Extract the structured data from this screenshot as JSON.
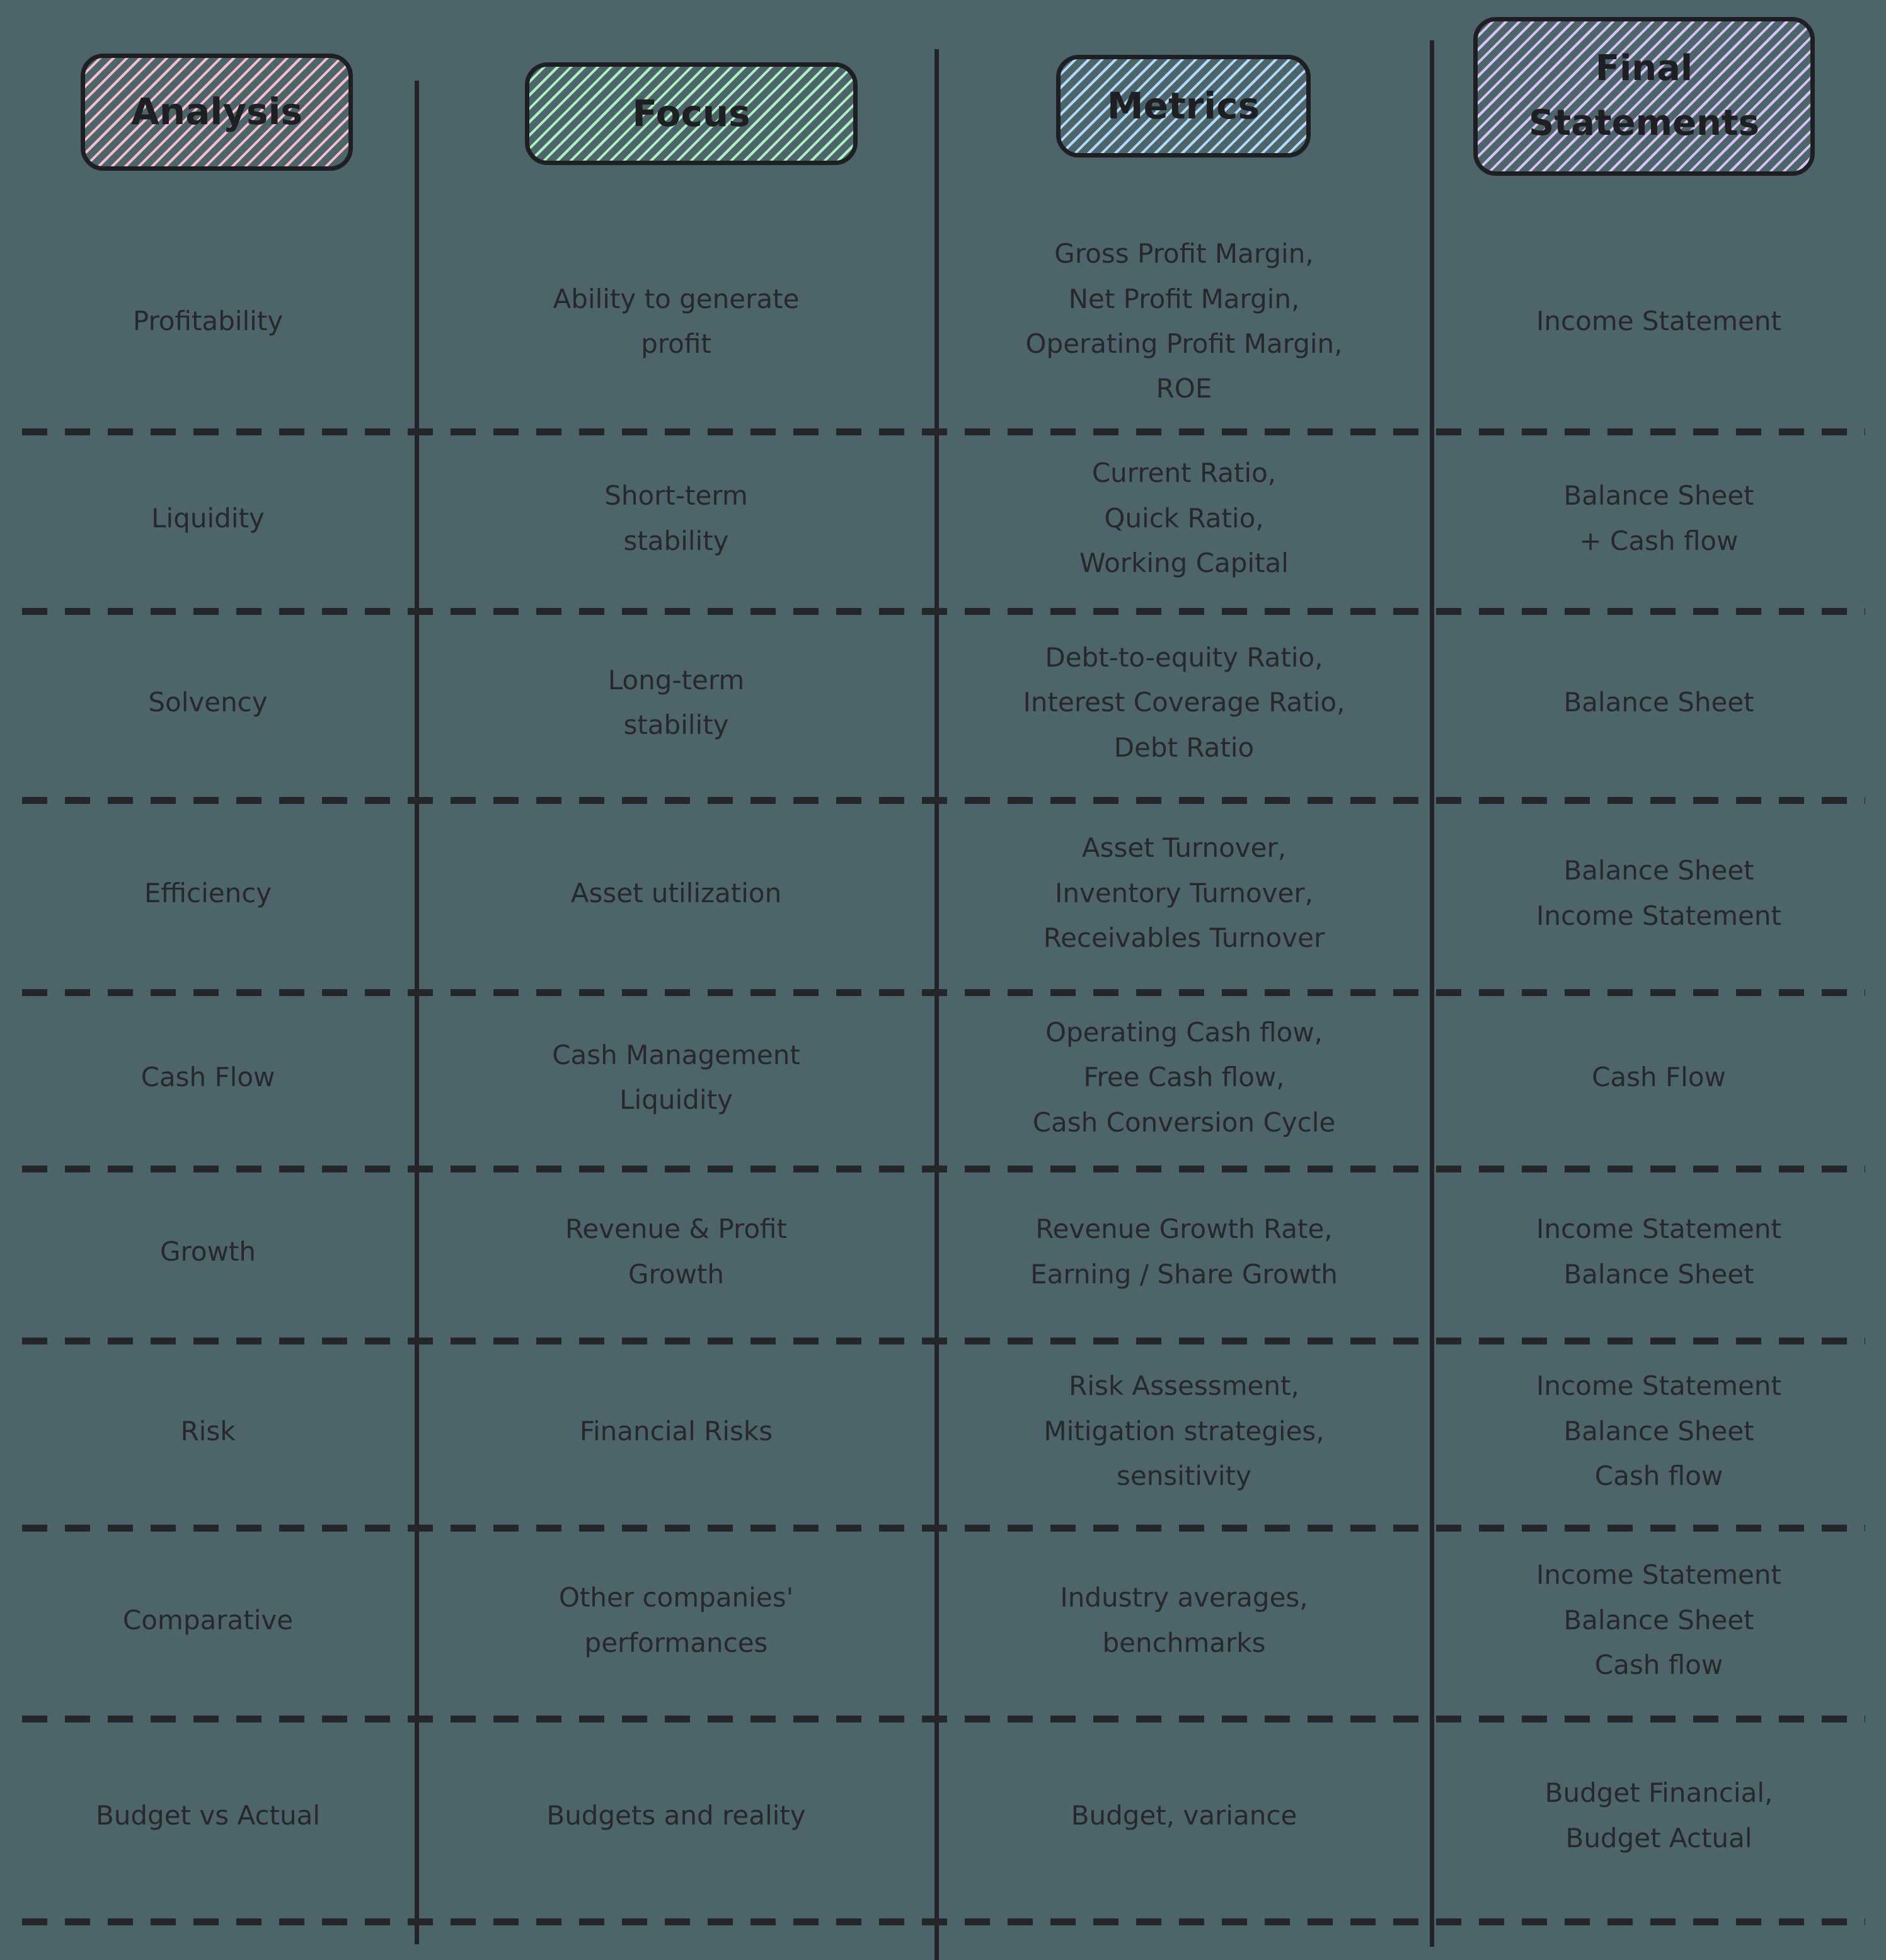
{
  "diagram": {
    "background_color": "#4e646b",
    "ink_color": "#24262b",
    "headers": [
      {
        "label": "Analysis",
        "hatch_color": "#f4becd"
      },
      {
        "label": "Focus",
        "hatch_color": "#aff0c2"
      },
      {
        "label": "Metrics",
        "hatch_color": "#b0daf8"
      },
      {
        "label": "Final\nStatements",
        "hatch_color": "#d6c3f3"
      }
    ],
    "rows": [
      {
        "analysis": "Profitability",
        "focus": "Ability to generate\nprofit",
        "metrics": "Gross Profit Margin,\nNet Profit Margin,\nOperating Profit Margin,\nROE",
        "statements": "Income Statement"
      },
      {
        "analysis": "Liquidity",
        "focus": "Short-term\nstability",
        "metrics": "Current Ratio,\nQuick Ratio,\nWorking Capital",
        "statements": "Balance Sheet\n+ Cash flow"
      },
      {
        "analysis": "Solvency",
        "focus": "Long-term\nstability",
        "metrics": "Debt-to-equity Ratio,\nInterest Coverage Ratio,\nDebt Ratio",
        "statements": "Balance Sheet"
      },
      {
        "analysis": "Efficiency",
        "focus": "Asset utilization",
        "metrics": "Asset Turnover,\nInventory Turnover,\nReceivables Turnover",
        "statements": "Balance Sheet\nIncome Statement"
      },
      {
        "analysis": "Cash Flow",
        "focus": "Cash Management\nLiquidity",
        "metrics": "Operating Cash flow,\nFree Cash flow,\nCash Conversion Cycle",
        "statements": "Cash Flow"
      },
      {
        "analysis": "Growth",
        "focus": "Revenue & Profit\nGrowth",
        "metrics": "Revenue Growth Rate,\nEarning / Share Growth",
        "statements": "Income Statement\nBalance Sheet"
      },
      {
        "analysis": "Risk",
        "focus": "Financial Risks",
        "metrics": "Risk Assessment,\nMitigation strategies,\nsensitivity",
        "statements": "Income Statement\nBalance Sheet\nCash flow"
      },
      {
        "analysis": "Comparative",
        "focus": "Other companies'\nperformances",
        "metrics": "Industry averages,\nbenchmarks",
        "statements": "Income Statement\nBalance Sheet\nCash flow"
      },
      {
        "analysis": "Budget vs Actual",
        "focus": "Budgets and reality",
        "metrics": "Budget, variance",
        "statements": "Budget Financial,\nBudget Actual"
      }
    ]
  }
}
